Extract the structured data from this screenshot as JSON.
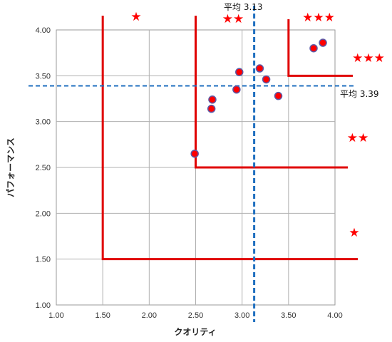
{
  "chart_data": {
    "type": "scatter",
    "xlabel": "クオリティ",
    "ylabel": "パフォーマンス",
    "xlim": [
      1.0,
      4.0
    ],
    "ylim": [
      1.0,
      4.0
    ],
    "x_ticks": [
      "1.00",
      "1.50",
      "2.00",
      "2.50",
      "3.00",
      "3.50",
      "4.00"
    ],
    "y_ticks": [
      "1.00",
      "1.50",
      "2.00",
      "2.50",
      "3.00",
      "3.50",
      "4.00"
    ],
    "grid": true,
    "points": [
      {
        "x": 2.49,
        "y": 2.65
      },
      {
        "x": 2.67,
        "y": 3.14
      },
      {
        "x": 2.68,
        "y": 3.24
      },
      {
        "x": 2.94,
        "y": 3.35
      },
      {
        "x": 2.97,
        "y": 3.54
      },
      {
        "x": 3.19,
        "y": 3.58
      },
      {
        "x": 3.26,
        "y": 3.46
      },
      {
        "x": 3.39,
        "y": 3.28
      },
      {
        "x": 3.77,
        "y": 3.8
      },
      {
        "x": 3.87,
        "y": 3.86
      }
    ],
    "averages": {
      "x": {
        "value": 3.13,
        "label": "平均 3.13"
      },
      "y": {
        "value": 3.39,
        "label": "平均 3.39"
      }
    },
    "zones": [
      {
        "x": 1.5,
        "y": 1.5,
        "stars": "★"
      },
      {
        "x": 2.5,
        "y": 2.5,
        "stars": "★★"
      },
      {
        "x": 3.5,
        "y": 3.5,
        "stars": "★★★"
      }
    ],
    "colors": {
      "point_fill": "#ff0000",
      "point_stroke": "#5a5aa8",
      "zone_line": "#e00000",
      "avg_line": "#1f6fbf",
      "grid": "#b0b0b0"
    }
  },
  "annotations": {
    "top": [
      "★",
      "★★",
      "★★★"
    ],
    "right": [
      "★★★",
      "★★",
      "★"
    ]
  }
}
